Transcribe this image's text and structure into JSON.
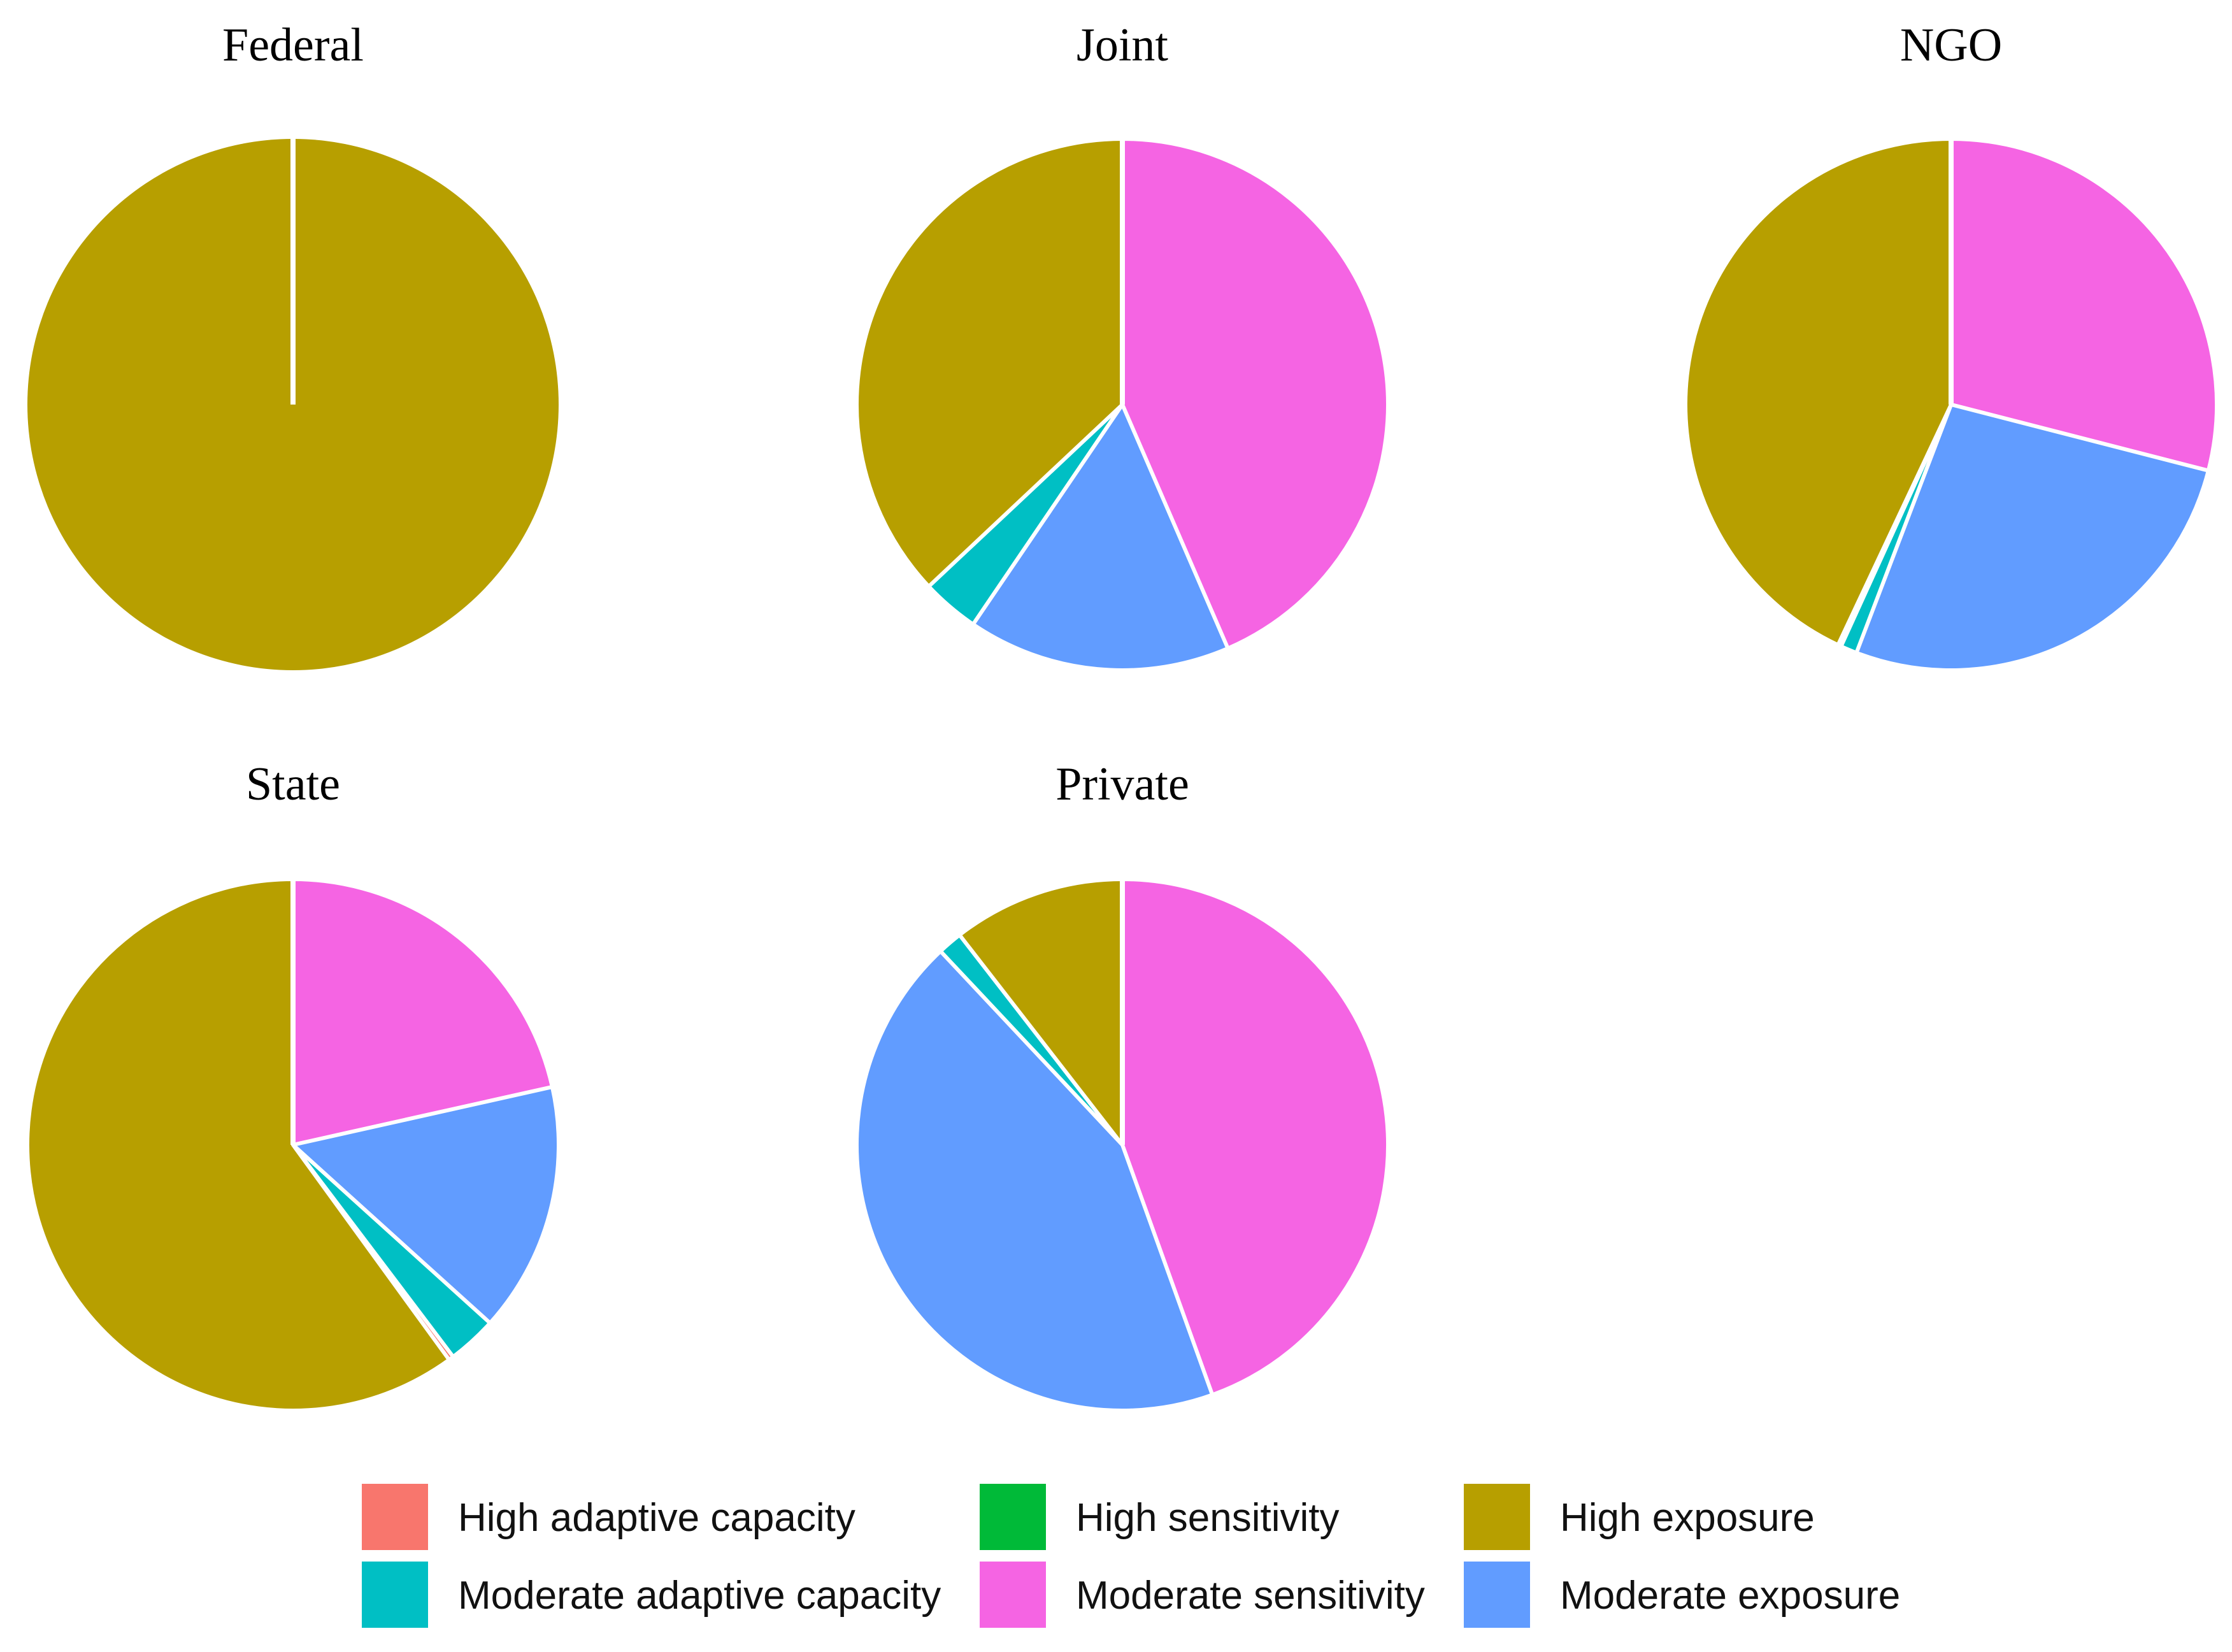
{
  "chart_data": {
    "type": "pie",
    "legend_position": "bottom",
    "categories": [
      {
        "key": "high_adaptive_capacity",
        "label": "High adaptive capacity",
        "color": "#F8766D"
      },
      {
        "key": "moderate_adaptive_capacity",
        "label": "Moderate adaptive capacity",
        "color": "#00BFC4"
      },
      {
        "key": "high_sensitivity",
        "label": "High sensitivity",
        "color": "#00BA38"
      },
      {
        "key": "moderate_sensitivity",
        "label": "Moderate sensitivity",
        "color": "#F564E3"
      },
      {
        "key": "high_exposure",
        "label": "High exposure",
        "color": "#B79F00"
      },
      {
        "key": "moderate_exposure",
        "label": "Moderate exposure",
        "color": "#619CFF"
      }
    ],
    "facets": [
      {
        "title": "Federal",
        "values": {
          "high_adaptive_capacity": 0,
          "moderate_adaptive_capacity": 0,
          "high_sensitivity": 0,
          "moderate_sensitivity": 0,
          "moderate_exposure": 0,
          "high_exposure": 100
        }
      },
      {
        "title": "Joint",
        "values": {
          "high_adaptive_capacity": 0,
          "moderate_adaptive_capacity": 3.5,
          "high_sensitivity": 0,
          "moderate_sensitivity": 43.5,
          "moderate_exposure": 16.0,
          "high_exposure": 37.0
        }
      },
      {
        "title": "NGO",
        "values": {
          "high_adaptive_capacity": 0.2,
          "moderate_adaptive_capacity": 1.0,
          "high_sensitivity": 0,
          "moderate_sensitivity": 29.0,
          "moderate_exposure": 26.8,
          "high_exposure": 43.0
        }
      },
      {
        "title": "State",
        "values": {
          "high_adaptive_capacity": 0.3,
          "moderate_adaptive_capacity": 3.0,
          "high_sensitivity": 0,
          "moderate_sensitivity": 21.5,
          "moderate_exposure": 15.2,
          "high_exposure": 60.0
        }
      },
      {
        "title": "Private",
        "values": {
          "high_adaptive_capacity": 0,
          "moderate_adaptive_capacity": 1.5,
          "high_sensitivity": 0,
          "moderate_sensitivity": 44.5,
          "moderate_exposure": 43.5,
          "high_exposure": 10.5
        }
      }
    ]
  }
}
